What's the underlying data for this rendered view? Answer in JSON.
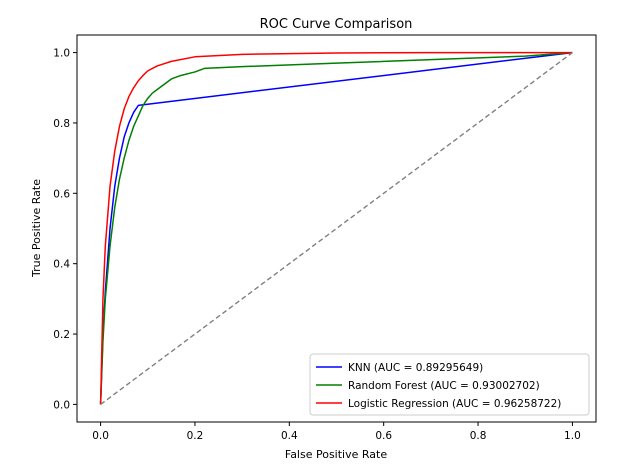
{
  "chart_data": {
    "type": "line",
    "title": "ROC Curve Comparison",
    "xlabel": "False Positive Rate",
    "ylabel": "True Positive Rate",
    "xlim": [
      -0.05,
      1.05
    ],
    "ylim": [
      -0.05,
      1.05
    ],
    "xticks": [
      "0.0",
      "0.2",
      "0.4",
      "0.6",
      "0.8",
      "1.0"
    ],
    "yticks": [
      "0.0",
      "0.2",
      "0.4",
      "0.6",
      "0.8",
      "1.0"
    ],
    "grid": false,
    "legend_position": "lower-right",
    "series": [
      {
        "name": "KNN (AUC = 0.89295649)",
        "color": "#0000ff",
        "x": [
          0.0,
          0.005,
          0.01,
          0.02,
          0.03,
          0.04,
          0.05,
          0.06,
          0.07,
          0.08,
          1.0
        ],
        "y": [
          0.0,
          0.2,
          0.32,
          0.5,
          0.62,
          0.7,
          0.76,
          0.8,
          0.83,
          0.85,
          1.0
        ]
      },
      {
        "name": "Random Forest (AUC = 0.93002702)",
        "color": "#008000",
        "x": [
          0.0,
          0.005,
          0.01,
          0.02,
          0.03,
          0.04,
          0.05,
          0.06,
          0.07,
          0.08,
          0.09,
          0.1,
          0.11,
          0.12,
          0.13,
          0.15,
          0.17,
          0.2,
          0.22,
          0.3,
          0.5,
          0.7,
          0.9,
          1.0
        ],
        "y": [
          0.0,
          0.18,
          0.3,
          0.45,
          0.56,
          0.64,
          0.7,
          0.75,
          0.79,
          0.82,
          0.85,
          0.87,
          0.885,
          0.895,
          0.905,
          0.925,
          0.935,
          0.945,
          0.955,
          0.96,
          0.97,
          0.98,
          0.99,
          1.0
        ]
      },
      {
        "name": "Logistic Regression (AUC = 0.96258722)",
        "color": "#ff0000",
        "x": [
          0.0,
          0.005,
          0.01,
          0.02,
          0.03,
          0.04,
          0.05,
          0.06,
          0.07,
          0.08,
          0.09,
          0.1,
          0.12,
          0.15,
          0.2,
          0.3,
          0.5,
          0.7,
          1.0
        ],
        "y": [
          0.0,
          0.3,
          0.45,
          0.62,
          0.72,
          0.79,
          0.84,
          0.875,
          0.9,
          0.92,
          0.935,
          0.948,
          0.962,
          0.975,
          0.988,
          0.995,
          0.999,
          1.0,
          1.0
        ]
      },
      {
        "name": "",
        "color": "#808080",
        "dashed": true,
        "x": [
          0.0,
          1.0
        ],
        "y": [
          0.0,
          1.0
        ]
      }
    ]
  }
}
